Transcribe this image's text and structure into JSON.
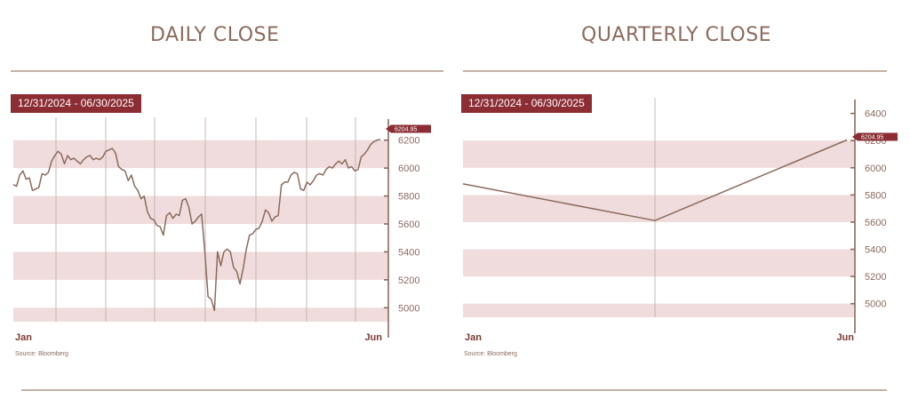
{
  "panels": [
    {
      "title": "DAILY CLOSE",
      "range_label": "12/31/2024 - 06/30/2025",
      "source": "Source: Bloomberg"
    },
    {
      "title": "QUARTERLY CLOSE",
      "range_label": "12/31/2024 - 06/30/2025",
      "source": "Source: Bloomberg"
    }
  ],
  "colors": {
    "line": "#8b6b5e",
    "band": "#f0dcdc",
    "badge": "#8b2d33",
    "axis": "#8b6b5e",
    "grid": "#b8aaa4"
  },
  "chart_data": [
    {
      "type": "line",
      "title": "DAILY CLOSE",
      "ylim": [
        4900,
        6300
      ],
      "yticks": [
        5000,
        5200,
        5400,
        5600,
        5800,
        6000,
        6200
      ],
      "x_tick_labels": [
        "Jan",
        "Jun"
      ],
      "last_value_label": "6204.95",
      "shaded_bands": [
        [
          4900,
          5000
        ],
        [
          5200,
          5400
        ],
        [
          5600,
          5800
        ],
        [
          6000,
          6200
        ]
      ],
      "grid": "vertical",
      "series": [
        {
          "values": [
            5882,
            5870,
            5950,
            5980,
            5920,
            5930,
            5840,
            5850,
            5860,
            5960,
            5950,
            5970,
            6050,
            6090,
            6120,
            6100,
            6030,
            6090,
            6060,
            6070,
            6050,
            6030,
            6060,
            6080,
            6090,
            6060,
            6070,
            6060,
            6080,
            6120,
            6130,
            6140,
            6110,
            6010,
            5990,
            5980,
            5910,
            5950,
            5870,
            5840,
            5780,
            5800,
            5690,
            5640,
            5630,
            5590,
            5580,
            5520,
            5660,
            5680,
            5640,
            5670,
            5660,
            5770,
            5780,
            5720,
            5600,
            5620,
            5650,
            5670,
            5400,
            5080,
            5060,
            4980,
            5400,
            5300,
            5400,
            5420,
            5400,
            5290,
            5260,
            5170,
            5280,
            5420,
            5520,
            5530,
            5560,
            5570,
            5620,
            5700,
            5680,
            5620,
            5650,
            5660,
            5880,
            5900,
            5900,
            5950,
            5970,
            5960,
            5850,
            5840,
            5900,
            5880,
            5910,
            5950,
            5960,
            5950,
            5990,
            6010,
            6000,
            6030,
            6050,
            6030,
            6060,
            6000,
            6010,
            5980,
            5990,
            6080,
            6100,
            6130,
            6170,
            6190,
            6200,
            6204.95
          ]
        }
      ]
    },
    {
      "type": "line",
      "title": "QUARTERLY CLOSE",
      "ylim": [
        4900,
        6450
      ],
      "yticks": [
        5000,
        5200,
        5400,
        5600,
        5800,
        6000,
        6200,
        6400
      ],
      "x_tick_labels": [
        "Jan",
        "Jun"
      ],
      "last_value_label": "6204.95",
      "shaded_bands": [
        [
          4900,
          5000
        ],
        [
          5200,
          5400
        ],
        [
          5600,
          5800
        ],
        [
          6000,
          6200
        ]
      ],
      "grid": "vertical",
      "series": [
        {
          "x": [
            "12/31/2024",
            "03/31/2025",
            "06/30/2025"
          ],
          "values": [
            5881.63,
            5611.85,
            6204.95
          ]
        }
      ]
    }
  ]
}
